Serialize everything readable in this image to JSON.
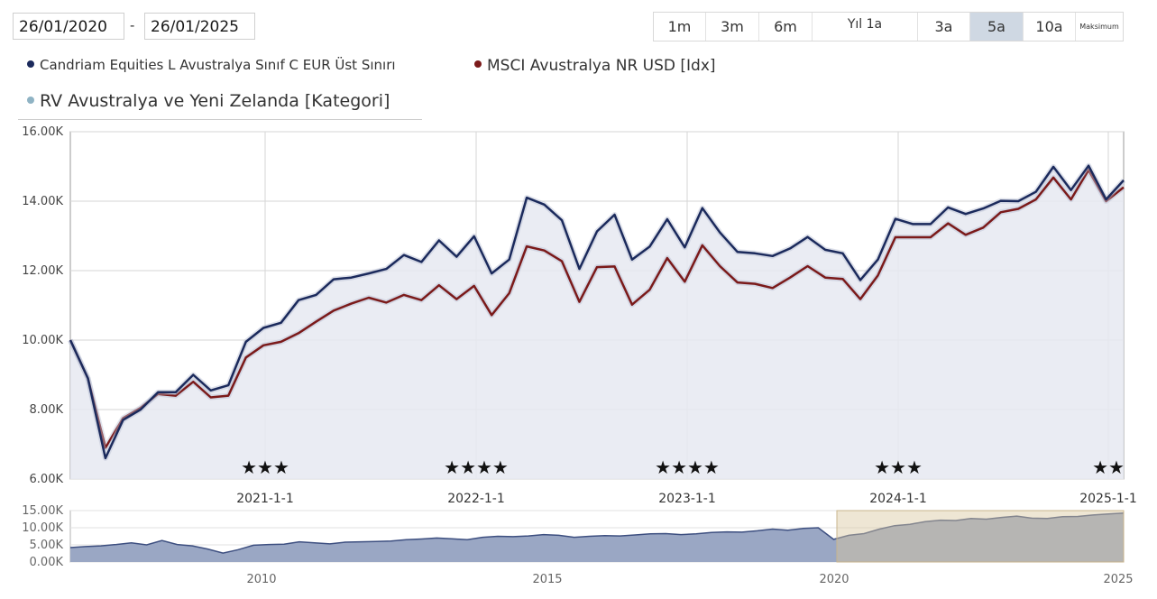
{
  "date_range": {
    "from": "26/01/2020",
    "to": "26/01/2025",
    "separator": "-"
  },
  "range_buttons": [
    {
      "label": "1m",
      "active": false
    },
    {
      "label": "3m",
      "active": false
    },
    {
      "label": "6m",
      "active": false
    },
    {
      "label": "Yıl 1a",
      "active": false
    },
    {
      "label": "3a",
      "active": false
    },
    {
      "label": "5a",
      "active": true
    },
    {
      "label": "10a",
      "active": false
    },
    {
      "label": "Maksimum",
      "active": false
    }
  ],
  "legend": [
    {
      "name": "Candriam Equities L Avustralya Sınıf C EUR Üst Sınırı",
      "color": "#1b2a5c"
    },
    {
      "name": "MSCI Avustralya NR USD [Idx]",
      "color": "#7b1a1a"
    },
    {
      "name": "RV Avustralya ve Yeni Zelanda [Kategori]",
      "color": "#8fb3c4"
    }
  ],
  "chart_data": {
    "type": "line",
    "ylim": [
      6000,
      16000
    ],
    "y_ticks": [
      "6.00K",
      "8.00K",
      "10.00K",
      "12.00K",
      "14.00K",
      "16.00K"
    ],
    "x_ticks": [
      "2021-1-1",
      "2022-1-1",
      "2023-1-1",
      "2024-1-1",
      "2025-1-1"
    ],
    "grid": true,
    "series": [
      {
        "name": "Candriam Equities L Avustralya Sınıf C EUR Üst Sınırı",
        "color": "#1b2a5c",
        "values": [
          10000,
          8900,
          6600,
          7700,
          8000,
          8500,
          8500,
          9000,
          8550,
          8700,
          9950,
          10350,
          10500,
          11150,
          11300,
          11750,
          11800,
          11920,
          12050,
          12450,
          12250,
          12870,
          12400,
          12990,
          11920,
          12320,
          14100,
          13900,
          13450,
          12050,
          13130,
          13610,
          12320,
          12690,
          13480,
          12670,
          13800,
          13100,
          12540,
          12500,
          12420,
          12640,
          12970,
          12600,
          12500,
          11730,
          12320,
          13490,
          13340,
          13340,
          13820,
          13630,
          13790,
          14010,
          14000,
          14270,
          14990,
          14320,
          15020,
          14050,
          14600
        ]
      },
      {
        "name": "MSCI Avustralya NR USD [Idx]",
        "color": "#7b1a1a",
        "values": [
          10000,
          8900,
          6900,
          7750,
          8050,
          8450,
          8400,
          8800,
          8350,
          8400,
          9500,
          9850,
          9950,
          10200,
          10530,
          10850,
          11050,
          11220,
          11080,
          11300,
          11150,
          11580,
          11180,
          11560,
          10720,
          11350,
          12700,
          12580,
          12270,
          11100,
          12100,
          12120,
          11020,
          11450,
          12360,
          11680,
          12730,
          12130,
          11660,
          11620,
          11500,
          11800,
          12130,
          11800,
          11760,
          11180,
          11860,
          12960,
          12960,
          12960,
          13360,
          13030,
          13240,
          13680,
          13780,
          14050,
          14680,
          14050,
          14900,
          14000,
          14400
        ]
      }
    ],
    "ratings": [
      {
        "x_position": "2021-1-1",
        "stars": "★★★"
      },
      {
        "x_position": "2022-1-1",
        "stars": "★★★★"
      },
      {
        "x_position": "2023-1-1",
        "stars": "★★★★"
      },
      {
        "x_position": "2024-1-1",
        "stars": "★★★"
      },
      {
        "x_position": "2025-1-1",
        "stars": "★★"
      }
    ],
    "navigator": {
      "y_ticks": [
        "0.00K",
        "5.00K",
        "10.00K",
        "15.00K"
      ],
      "x_ticks": [
        "2010",
        "2015",
        "2020",
        "2025"
      ],
      "ylim": [
        0,
        15000
      ],
      "selected_range": [
        "2020",
        "2025"
      ],
      "values": [
        4200,
        4500,
        4700,
        5100,
        5600,
        5000,
        6300,
        5100,
        4700,
        3800,
        2600,
        3600,
        4900,
        5100,
        5200,
        5900,
        5600,
        5300,
        5800,
        5900,
        6000,
        6100,
        6500,
        6700,
        7000,
        6800,
        6500,
        7200,
        7500,
        7400,
        7600,
        8000,
        7800,
        7200,
        7500,
        7700,
        7600,
        7900,
        8200,
        8300,
        8000,
        8200,
        8600,
        8800,
        8700,
        9100,
        9600,
        9300,
        9800,
        10000,
        6600,
        7800,
        8300,
        9600,
        10600,
        11000,
        11800,
        12200,
        12100,
        12700,
        12500,
        13000,
        13400,
        12800,
        12700,
        13200,
        13300,
        13700,
        14000,
        14300
      ]
    }
  }
}
